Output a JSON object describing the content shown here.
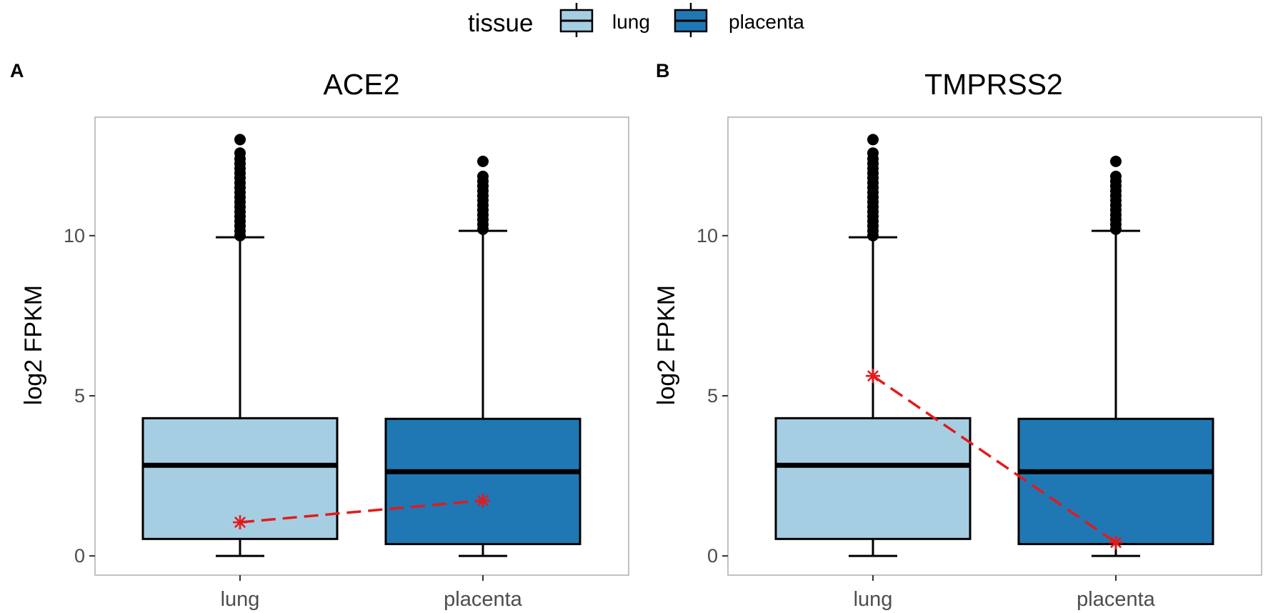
{
  "legend": {
    "title": "tissue",
    "items": [
      {
        "label": "lung",
        "color": "#a6cee3"
      },
      {
        "label": "placenta",
        "color": "#1f78b4"
      }
    ]
  },
  "colors": {
    "lung": "#a6cee3",
    "placenta": "#1f78b4",
    "highlight": "#e31a1c",
    "panel_border": "#b3b3b3",
    "box_outline": "#000000"
  },
  "chart_data": [
    {
      "type": "box",
      "panel_tag": "A",
      "title": "ACE2",
      "xlabel": "",
      "ylabel": "log2 FPKM",
      "categories": [
        "lung",
        "placenta"
      ],
      "yticks": [
        "0",
        "5",
        "10"
      ],
      "ylim": [
        -0.6,
        13.7
      ],
      "grid": false,
      "boxes": [
        {
          "category": "lung",
          "min": 0,
          "q1": 0.53,
          "median": 2.83,
          "q3": 4.3,
          "max": 9.95,
          "outliers": [
            10.0,
            10.15,
            10.3,
            10.45,
            10.6,
            10.75,
            10.9,
            11.05,
            11.2,
            11.35,
            11.5,
            11.65,
            11.8,
            11.95,
            12.1,
            12.25,
            12.4,
            12.58,
            13.0
          ]
        },
        {
          "category": "placenta",
          "min": 0,
          "q1": 0.37,
          "median": 2.63,
          "q3": 4.28,
          "max": 10.15,
          "outliers": [
            10.2,
            10.35,
            10.5,
            10.65,
            10.8,
            10.95,
            11.1,
            11.25,
            11.4,
            11.55,
            11.7,
            11.85,
            12.32
          ]
        }
      ],
      "highlight": {
        "label": "ACE2",
        "values": [
          1.05,
          1.73
        ],
        "marker": "asterisk",
        "line": "dashed"
      }
    },
    {
      "type": "box",
      "panel_tag": "B",
      "title": "TMPRSS2",
      "xlabel": "",
      "ylabel": "log2 FPKM",
      "categories": [
        "lung",
        "placenta"
      ],
      "yticks": [
        "0",
        "5",
        "10"
      ],
      "ylim": [
        -0.6,
        13.7
      ],
      "grid": false,
      "boxes": [
        {
          "category": "lung",
          "min": 0,
          "q1": 0.53,
          "median": 2.83,
          "q3": 4.3,
          "max": 9.95,
          "outliers": [
            10.0,
            10.15,
            10.3,
            10.45,
            10.6,
            10.75,
            10.9,
            11.05,
            11.2,
            11.35,
            11.5,
            11.65,
            11.8,
            11.95,
            12.1,
            12.25,
            12.4,
            12.58,
            13.0
          ]
        },
        {
          "category": "placenta",
          "min": 0,
          "q1": 0.37,
          "median": 2.63,
          "q3": 4.28,
          "max": 10.15,
          "outliers": [
            10.2,
            10.35,
            10.5,
            10.65,
            10.8,
            10.95,
            11.1,
            11.25,
            11.4,
            11.55,
            11.7,
            11.85,
            12.32
          ]
        }
      ],
      "highlight": {
        "label": "TMPRSS2",
        "values": [
          5.62,
          0.42
        ],
        "marker": "asterisk",
        "line": "dashed"
      }
    }
  ]
}
